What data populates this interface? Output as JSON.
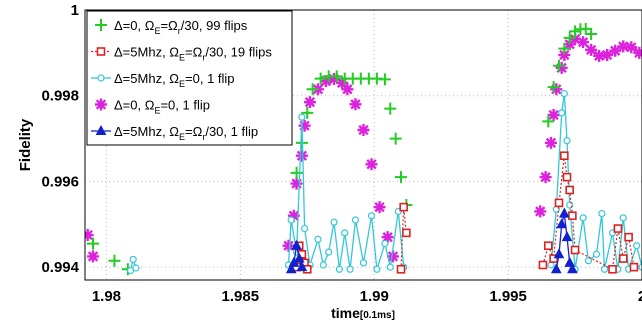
{
  "chart_data": {
    "type": "scatter",
    "title": "",
    "xlabel": "time",
    "xlabel_unit": "[0.1ms]",
    "ylabel": "Fidelity",
    "xlim": [
      1.9792,
      2.0
    ],
    "ylim": [
      0.9937,
      1.0
    ],
    "x_ticks": [
      1.98,
      1.985,
      1.99,
      1.995,
      2.0
    ],
    "x_tick_labels": [
      "1.98",
      "1.985",
      "1.99",
      "1.995",
      "2"
    ],
    "y_ticks": [
      0.994,
      0.996,
      0.998,
      1.0
    ],
    "y_tick_labels": [
      "0.994",
      "0.996",
      "0.998",
      "1"
    ],
    "grid": true,
    "legend_position": "top-left",
    "series": [
      {
        "name": "Δ=0, Ω_E=Ω_r/30, 99 flips",
        "legend": {
          "p1": "Δ=0, Ω",
          "s1": "E",
          "p2": "=Ω",
          "s2": "r",
          "p3": "/30, 99 flips"
        },
        "color": "#22cc22",
        "marker": "plus",
        "linestyle": "none",
        "points": [
          [
            1.9795,
            0.99455
          ],
          [
            1.9803,
            0.99415
          ],
          [
            1.9808,
            0.99395
          ],
          [
            1.9871,
            0.9962
          ],
          [
            1.9873,
            0.9969
          ],
          [
            1.9875,
            0.9976
          ],
          [
            1.9877,
            0.99815
          ],
          [
            1.988,
            0.9984
          ],
          [
            1.9883,
            0.99845
          ],
          [
            1.9886,
            0.99845
          ],
          [
            1.9889,
            0.9984
          ],
          [
            1.9892,
            0.9984
          ],
          [
            1.9895,
            0.9984
          ],
          [
            1.9898,
            0.9984
          ],
          [
            1.9901,
            0.9984
          ],
          [
            1.9904,
            0.99838
          ],
          [
            1.9906,
            0.9977
          ],
          [
            1.9908,
            0.997
          ],
          [
            1.991,
            0.9961
          ],
          [
            1.9912,
            0.99545
          ],
          [
            1.9965,
            0.9974
          ],
          [
            1.9967,
            0.9982
          ],
          [
            1.9969,
            0.9987
          ],
          [
            1.9971,
            0.9991
          ],
          [
            1.9973,
            0.99935
          ],
          [
            1.9975,
            0.9995
          ],
          [
            1.9977,
            0.99955
          ],
          [
            1.9979,
            0.99956
          ],
          [
            1.9981,
            0.99944
          ]
        ]
      },
      {
        "name": "Δ=5Mhz, Ω_E=Ω_r/30, 19 flips",
        "legend": {
          "p1": "Δ=5Mhz, Ω",
          "s1": "E",
          "p2": "=Ω",
          "s2": "r",
          "p3": "/30, 19 flips"
        },
        "color": "#dd2222",
        "marker": "square",
        "linestyle": "dotted",
        "points": [
          [
            1.9871,
            0.994
          ],
          [
            1.9872,
            0.9945
          ],
          [
            1.9873,
            0.9943
          ],
          [
            1.9874,
            0.9941
          ],
          [
            1.9875,
            0.99395
          ],
          [
            1.991,
            0.99395
          ],
          [
            1.9911,
            0.9954
          ],
          [
            1.9912,
            0.9948
          ],
          [
            1.9963,
            0.99405
          ],
          [
            1.9965,
            0.9945
          ],
          [
            1.9967,
            0.9942
          ],
          [
            1.9969,
            0.9955
          ],
          [
            1.9971,
            0.9966
          ],
          [
            1.9972,
            0.9961
          ],
          [
            1.9973,
            0.9958
          ],
          [
            1.9974,
            0.9952
          ],
          [
            1.9975,
            0.9944
          ],
          [
            1.9989,
            0.99395
          ],
          [
            1.9991,
            0.9949
          ],
          [
            1.9993,
            0.9942
          ],
          [
            1.9995,
            0.9947
          ],
          [
            1.9997,
            0.994
          ]
        ]
      },
      {
        "name": "Δ=5Mhz, Ω_E=0, 1 flip",
        "legend": {
          "p1": "Δ=5Mhz, Ω",
          "s1": "E",
          "p2": "=0, 1 flip",
          "s2": "",
          "p3": ""
        },
        "color": "#33c8d8",
        "marker": "circle",
        "linestyle": "solid",
        "points": [
          [
            1.9809,
            0.99392
          ],
          [
            1.981,
            0.99418
          ],
          [
            1.9811,
            0.99398
          ],
          [
            1.9868,
            0.99405
          ],
          [
            1.9869,
            0.9951
          ],
          [
            1.9871,
            0.99435
          ],
          [
            1.9873,
            0.9975
          ],
          [
            1.9874,
            0.9949
          ],
          [
            1.9876,
            0.99405
          ],
          [
            1.9879,
            0.99465
          ],
          [
            1.9881,
            0.99405
          ],
          [
            1.9883,
            0.99435
          ],
          [
            1.9885,
            0.99505
          ],
          [
            1.9887,
            0.99395
          ],
          [
            1.9889,
            0.9948
          ],
          [
            1.9891,
            0.99395
          ],
          [
            1.9893,
            0.9951
          ],
          [
            1.9896,
            0.9941
          ],
          [
            1.9899,
            0.9952
          ],
          [
            1.9901,
            0.99395
          ],
          [
            1.9904,
            0.99455
          ],
          [
            1.9906,
            0.994
          ],
          [
            1.9909,
            0.9953
          ],
          [
            1.9911,
            0.994
          ],
          [
            1.9966,
            0.99405
          ],
          [
            1.9968,
            0.99535
          ],
          [
            1.997,
            0.9976
          ],
          [
            1.9971,
            0.99805
          ],
          [
            1.9972,
            0.99695
          ],
          [
            1.9973,
            0.99545
          ],
          [
            1.9975,
            0.99395
          ],
          [
            1.9978,
            0.99515
          ],
          [
            1.998,
            0.99415
          ],
          [
            1.9983,
            0.9943
          ],
          [
            1.9985,
            0.99525
          ],
          [
            1.9986,
            0.99395
          ],
          [
            1.9989,
            0.9948
          ],
          [
            1.9991,
            0.99395
          ],
          [
            1.9993,
            0.99515
          ],
          [
            1.9995,
            0.99395
          ],
          [
            1.9998,
            0.9945
          ],
          [
            2.0,
            0.994
          ]
        ]
      },
      {
        "name": "Δ=0, Ω_E=0, 1 flip",
        "legend": {
          "p1": "Δ=0, Ω",
          "s1": "E",
          "p2": "=0, 1 flip",
          "s2": "",
          "p3": ""
        },
        "color": "#dd22dd",
        "marker": "star",
        "linestyle": "none",
        "points": [
          [
            1.9793,
            0.99475
          ],
          [
            1.9795,
            0.99425
          ],
          [
            1.9868,
            0.9945
          ],
          [
            1.987,
            0.9952
          ],
          [
            1.9871,
            0.99595
          ],
          [
            1.9873,
            0.9966
          ],
          [
            1.9874,
            0.9973
          ],
          [
            1.9876,
            0.99785
          ],
          [
            1.9879,
            0.99815
          ],
          [
            1.9882,
            0.99834
          ],
          [
            1.9885,
            0.99839
          ],
          [
            1.9888,
            0.9983
          ],
          [
            1.989,
            0.99815
          ],
          [
            1.9893,
            0.9978
          ],
          [
            1.9896,
            0.9972
          ],
          [
            1.9899,
            0.9964
          ],
          [
            1.9902,
            0.9954
          ],
          [
            1.9905,
            0.9947
          ],
          [
            1.9907,
            0.99425
          ],
          [
            1.9962,
            0.9953
          ],
          [
            1.9964,
            0.9961
          ],
          [
            1.9966,
            0.9969
          ],
          [
            1.9967,
            0.99755
          ],
          [
            1.9968,
            0.99815
          ],
          [
            1.997,
            0.99865
          ],
          [
            1.9971,
            0.99895
          ],
          [
            1.9973,
            0.9992
          ],
          [
            1.9975,
            0.99932
          ],
          [
            1.9978,
            0.99925
          ],
          [
            1.9981,
            0.99907
          ],
          [
            1.9984,
            0.99893
          ],
          [
            1.9987,
            0.99895
          ],
          [
            1.999,
            0.99905
          ],
          [
            1.9993,
            0.99915
          ],
          [
            1.9996,
            0.99913
          ],
          [
            1.9999,
            0.999
          ]
        ]
      },
      {
        "name": "Δ=5Mhz, Ω_E=Ω_r/30, 1 flip",
        "legend": {
          "p1": "Δ=5Mhz, Ω",
          "s1": "E",
          "p2": "=Ω",
          "s2": "r",
          "p3": "/30, 1 flip"
        },
        "color": "#1122cc",
        "marker": "triangle",
        "linestyle": "solid",
        "points": [
          [
            1.9869,
            0.99395
          ],
          [
            1.987,
            0.9941
          ],
          [
            1.9871,
            0.9945
          ],
          [
            1.9872,
            0.9942
          ],
          [
            1.9873,
            0.994
          ],
          [
            1.9968,
            0.99395
          ],
          [
            1.9969,
            0.9943
          ],
          [
            1.997,
            0.995
          ],
          [
            1.9971,
            0.99525
          ],
          [
            1.9972,
            0.9947
          ],
          [
            1.9973,
            0.9941
          ],
          [
            1.9974,
            0.99395
          ]
        ]
      }
    ]
  }
}
